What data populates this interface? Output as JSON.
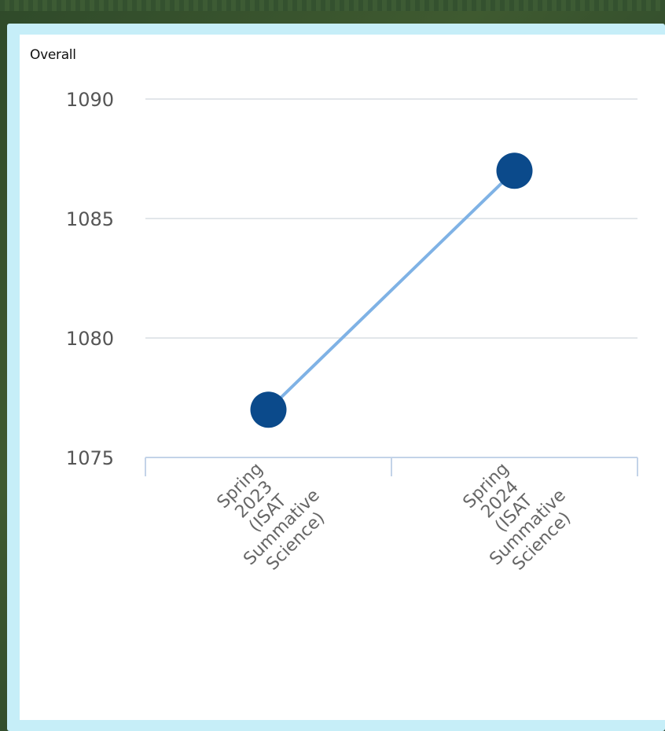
{
  "panel": {
    "title": "Overall"
  },
  "chart_data": {
    "type": "line",
    "categories": [
      [
        "Spring",
        "2023",
        "(ISAT",
        "Summative",
        "Science)"
      ],
      [
        "Spring",
        "2024",
        "(ISAT",
        "Summative",
        "Science)"
      ]
    ],
    "series": [
      {
        "values": [
          1077,
          1087
        ]
      }
    ],
    "ylim": [
      1075,
      1090
    ],
    "yticks": [
      1075,
      1080,
      1085,
      1090
    ],
    "grid": true,
    "colors": {
      "line": "#7fb2e5",
      "marker": "#0b4a8b",
      "grid": "#e2e6ea",
      "axis": "#c3d3e8",
      "tick_text": "#555555",
      "frame": "#c6eef8"
    }
  }
}
